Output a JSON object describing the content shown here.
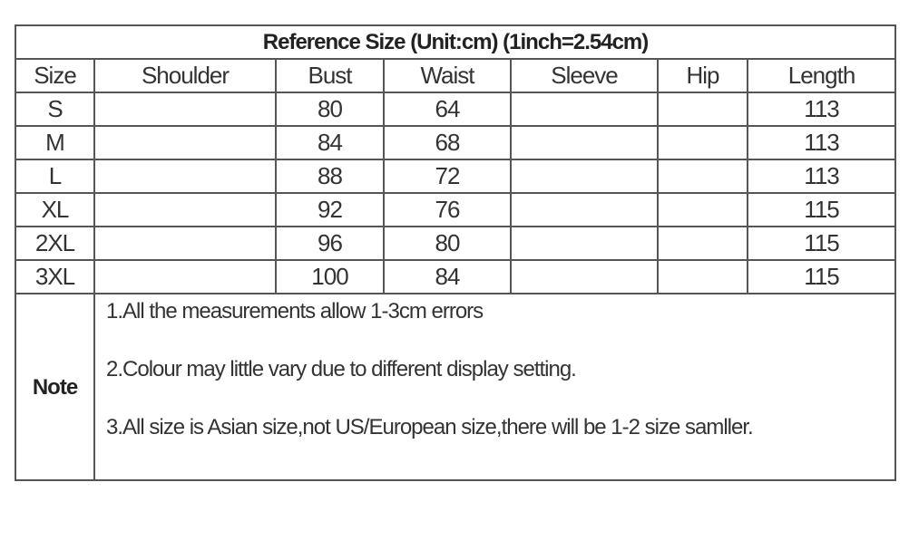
{
  "title": "Reference Size (Unit:cm) (1inch=2.54cm)",
  "columns": [
    "Size",
    "Shoulder",
    "Bust",
    "Waist",
    "Sleeve",
    "Hip",
    "Length"
  ],
  "rows": [
    [
      "S",
      "",
      "80",
      "64",
      "",
      "",
      "113"
    ],
    [
      "M",
      "",
      "84",
      "68",
      "",
      "",
      "113"
    ],
    [
      "L",
      "",
      "88",
      "72",
      "",
      "",
      "113"
    ],
    [
      "XL",
      "",
      "92",
      "76",
      "",
      "",
      "115"
    ],
    [
      "2XL",
      "",
      "96",
      "80",
      "",
      "",
      "115"
    ],
    [
      "3XL",
      "",
      "100",
      "84",
      "",
      "",
      "115"
    ]
  ],
  "note": {
    "label": "Note",
    "items": [
      "1.All the measurements allow 1-3cm errors",
      "2.Colour may little vary due to different display setting.",
      "3.All size is Asian size,not US/European size,there will be 1-2 size samller."
    ]
  }
}
